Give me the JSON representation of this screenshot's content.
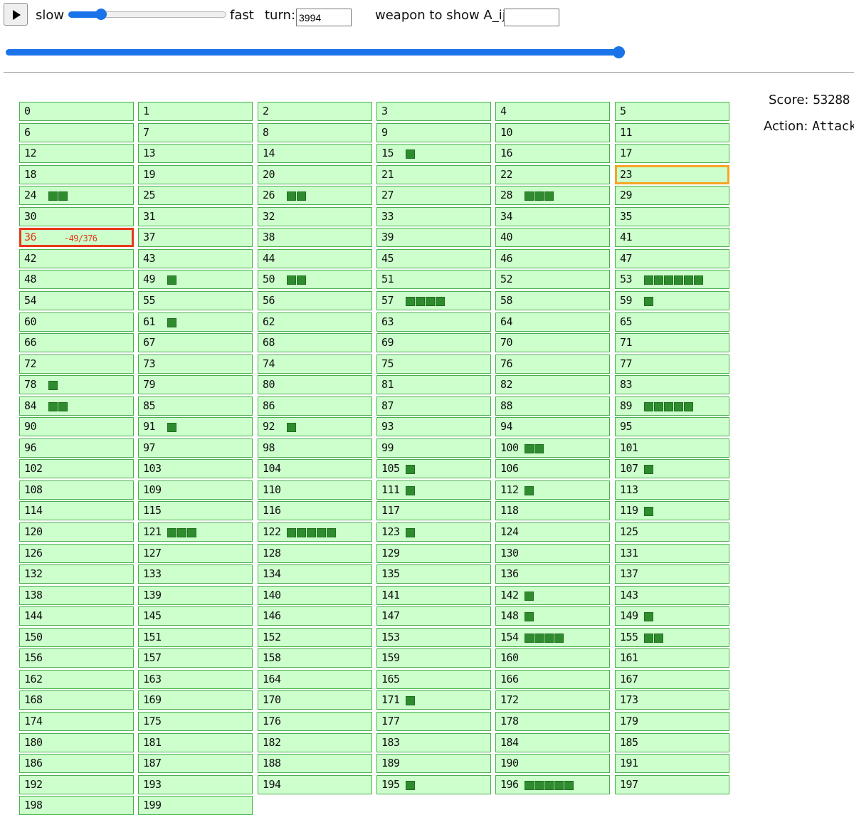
{
  "controls": {
    "play_icon": "play-triangle-icon",
    "slow_label": "slow",
    "fast_label": "fast",
    "speed_value": 0.2,
    "turn_label": "turn:",
    "turn_value": "3994",
    "weapon_label": "weapon to show A_ij:",
    "weapon_value": "",
    "turn_progress": 1.0
  },
  "side": {
    "score_label": "Score:",
    "score_value": "53288",
    "action_label": "Action:",
    "action_value": "Attack"
  },
  "colors": {
    "cell_bg": "#ccffcc",
    "cell_border": "#4caf50",
    "block": "#2e8b2e",
    "highlight_red": "#e53919",
    "highlight_orange": "#f5a623",
    "slider": "#1a73e8"
  },
  "cells": [
    {
      "id": "0",
      "blocks": 0
    },
    {
      "id": "1",
      "blocks": 0
    },
    {
      "id": "2",
      "blocks": 0
    },
    {
      "id": "3",
      "blocks": 0
    },
    {
      "id": "4",
      "blocks": 0
    },
    {
      "id": "5",
      "blocks": 0
    },
    {
      "id": "6",
      "blocks": 0
    },
    {
      "id": "7",
      "blocks": 0
    },
    {
      "id": "8",
      "blocks": 0
    },
    {
      "id": "9",
      "blocks": 0
    },
    {
      "id": "10",
      "blocks": 0
    },
    {
      "id": "11",
      "blocks": 0
    },
    {
      "id": "12",
      "blocks": 0
    },
    {
      "id": "13",
      "blocks": 0
    },
    {
      "id": "14",
      "blocks": 0
    },
    {
      "id": "15",
      "blocks": 1
    },
    {
      "id": "16",
      "blocks": 0
    },
    {
      "id": "17",
      "blocks": 0
    },
    {
      "id": "18",
      "blocks": 0
    },
    {
      "id": "19",
      "blocks": 0
    },
    {
      "id": "20",
      "blocks": 0
    },
    {
      "id": "21",
      "blocks": 0
    },
    {
      "id": "22",
      "blocks": 0
    },
    {
      "id": "23",
      "blocks": 0,
      "highlight": "orange"
    },
    {
      "id": "24",
      "blocks": 2
    },
    {
      "id": "25",
      "blocks": 0
    },
    {
      "id": "26",
      "blocks": 2
    },
    {
      "id": "27",
      "blocks": 0
    },
    {
      "id": "28",
      "blocks": 3
    },
    {
      "id": "29",
      "blocks": 0
    },
    {
      "id": "30",
      "blocks": 0
    },
    {
      "id": "31",
      "blocks": 0
    },
    {
      "id": "32",
      "blocks": 0
    },
    {
      "id": "33",
      "blocks": 0
    },
    {
      "id": "34",
      "blocks": 0
    },
    {
      "id": "35",
      "blocks": 0
    },
    {
      "id": "36",
      "blocks": 0,
      "highlight": "red",
      "text": "-49/376"
    },
    {
      "id": "37",
      "blocks": 0
    },
    {
      "id": "38",
      "blocks": 0
    },
    {
      "id": "39",
      "blocks": 0
    },
    {
      "id": "40",
      "blocks": 0
    },
    {
      "id": "41",
      "blocks": 0
    },
    {
      "id": "42",
      "blocks": 0
    },
    {
      "id": "43",
      "blocks": 0
    },
    {
      "id": "44",
      "blocks": 0
    },
    {
      "id": "45",
      "blocks": 0
    },
    {
      "id": "46",
      "blocks": 0
    },
    {
      "id": "47",
      "blocks": 0
    },
    {
      "id": "48",
      "blocks": 0
    },
    {
      "id": "49",
      "blocks": 1
    },
    {
      "id": "50",
      "blocks": 2
    },
    {
      "id": "51",
      "blocks": 0
    },
    {
      "id": "52",
      "blocks": 0
    },
    {
      "id": "53",
      "blocks": 6
    },
    {
      "id": "54",
      "blocks": 0
    },
    {
      "id": "55",
      "blocks": 0
    },
    {
      "id": "56",
      "blocks": 0
    },
    {
      "id": "57",
      "blocks": 4
    },
    {
      "id": "58",
      "blocks": 0
    },
    {
      "id": "59",
      "blocks": 1
    },
    {
      "id": "60",
      "blocks": 0
    },
    {
      "id": "61",
      "blocks": 1
    },
    {
      "id": "62",
      "blocks": 0
    },
    {
      "id": "63",
      "blocks": 0
    },
    {
      "id": "64",
      "blocks": 0
    },
    {
      "id": "65",
      "blocks": 0
    },
    {
      "id": "66",
      "blocks": 0
    },
    {
      "id": "67",
      "blocks": 0
    },
    {
      "id": "68",
      "blocks": 0
    },
    {
      "id": "69",
      "blocks": 0
    },
    {
      "id": "70",
      "blocks": 0
    },
    {
      "id": "71",
      "blocks": 0
    },
    {
      "id": "72",
      "blocks": 0
    },
    {
      "id": "73",
      "blocks": 0
    },
    {
      "id": "74",
      "blocks": 0
    },
    {
      "id": "75",
      "blocks": 0
    },
    {
      "id": "76",
      "blocks": 0
    },
    {
      "id": "77",
      "blocks": 0
    },
    {
      "id": "78",
      "blocks": 1
    },
    {
      "id": "79",
      "blocks": 0
    },
    {
      "id": "80",
      "blocks": 0
    },
    {
      "id": "81",
      "blocks": 0
    },
    {
      "id": "82",
      "blocks": 0
    },
    {
      "id": "83",
      "blocks": 0
    },
    {
      "id": "84",
      "blocks": 2
    },
    {
      "id": "85",
      "blocks": 0
    },
    {
      "id": "86",
      "blocks": 0
    },
    {
      "id": "87",
      "blocks": 0
    },
    {
      "id": "88",
      "blocks": 0
    },
    {
      "id": "89",
      "blocks": 5
    },
    {
      "id": "90",
      "blocks": 0
    },
    {
      "id": "91",
      "blocks": 1
    },
    {
      "id": "92",
      "blocks": 1
    },
    {
      "id": "93",
      "blocks": 0
    },
    {
      "id": "94",
      "blocks": 0
    },
    {
      "id": "95",
      "blocks": 0
    },
    {
      "id": "96",
      "blocks": 0
    },
    {
      "id": "97",
      "blocks": 0
    },
    {
      "id": "98",
      "blocks": 0
    },
    {
      "id": "99",
      "blocks": 0
    },
    {
      "id": "100",
      "blocks": 2
    },
    {
      "id": "101",
      "blocks": 0
    },
    {
      "id": "102",
      "blocks": 0
    },
    {
      "id": "103",
      "blocks": 0
    },
    {
      "id": "104",
      "blocks": 0
    },
    {
      "id": "105",
      "blocks": 1
    },
    {
      "id": "106",
      "blocks": 0
    },
    {
      "id": "107",
      "blocks": 1
    },
    {
      "id": "108",
      "blocks": 0
    },
    {
      "id": "109",
      "blocks": 0
    },
    {
      "id": "110",
      "blocks": 0
    },
    {
      "id": "111",
      "blocks": 1
    },
    {
      "id": "112",
      "blocks": 1
    },
    {
      "id": "113",
      "blocks": 0
    },
    {
      "id": "114",
      "blocks": 0
    },
    {
      "id": "115",
      "blocks": 0
    },
    {
      "id": "116",
      "blocks": 0
    },
    {
      "id": "117",
      "blocks": 0
    },
    {
      "id": "118",
      "blocks": 0
    },
    {
      "id": "119",
      "blocks": 1
    },
    {
      "id": "120",
      "blocks": 0
    },
    {
      "id": "121",
      "blocks": 3
    },
    {
      "id": "122",
      "blocks": 5
    },
    {
      "id": "123",
      "blocks": 1
    },
    {
      "id": "124",
      "blocks": 0
    },
    {
      "id": "125",
      "blocks": 0
    },
    {
      "id": "126",
      "blocks": 0
    },
    {
      "id": "127",
      "blocks": 0
    },
    {
      "id": "128",
      "blocks": 0
    },
    {
      "id": "129",
      "blocks": 0
    },
    {
      "id": "130",
      "blocks": 0
    },
    {
      "id": "131",
      "blocks": 0
    },
    {
      "id": "132",
      "blocks": 0
    },
    {
      "id": "133",
      "blocks": 0
    },
    {
      "id": "134",
      "blocks": 0
    },
    {
      "id": "135",
      "blocks": 0
    },
    {
      "id": "136",
      "blocks": 0
    },
    {
      "id": "137",
      "blocks": 0
    },
    {
      "id": "138",
      "blocks": 0
    },
    {
      "id": "139",
      "blocks": 0
    },
    {
      "id": "140",
      "blocks": 0
    },
    {
      "id": "141",
      "blocks": 0
    },
    {
      "id": "142",
      "blocks": 1
    },
    {
      "id": "143",
      "blocks": 0
    },
    {
      "id": "144",
      "blocks": 0
    },
    {
      "id": "145",
      "blocks": 0
    },
    {
      "id": "146",
      "blocks": 0
    },
    {
      "id": "147",
      "blocks": 0
    },
    {
      "id": "148",
      "blocks": 1
    },
    {
      "id": "149",
      "blocks": 1
    },
    {
      "id": "150",
      "blocks": 0
    },
    {
      "id": "151",
      "blocks": 0
    },
    {
      "id": "152",
      "blocks": 0
    },
    {
      "id": "153",
      "blocks": 0
    },
    {
      "id": "154",
      "blocks": 4
    },
    {
      "id": "155",
      "blocks": 2
    },
    {
      "id": "156",
      "blocks": 0
    },
    {
      "id": "157",
      "blocks": 0
    },
    {
      "id": "158",
      "blocks": 0
    },
    {
      "id": "159",
      "blocks": 0
    },
    {
      "id": "160",
      "blocks": 0
    },
    {
      "id": "161",
      "blocks": 0
    },
    {
      "id": "162",
      "blocks": 0
    },
    {
      "id": "163",
      "blocks": 0
    },
    {
      "id": "164",
      "blocks": 0
    },
    {
      "id": "165",
      "blocks": 0
    },
    {
      "id": "166",
      "blocks": 0
    },
    {
      "id": "167",
      "blocks": 0
    },
    {
      "id": "168",
      "blocks": 0
    },
    {
      "id": "169",
      "blocks": 0
    },
    {
      "id": "170",
      "blocks": 0
    },
    {
      "id": "171",
      "blocks": 1
    },
    {
      "id": "172",
      "blocks": 0
    },
    {
      "id": "173",
      "blocks": 0
    },
    {
      "id": "174",
      "blocks": 0
    },
    {
      "id": "175",
      "blocks": 0
    },
    {
      "id": "176",
      "blocks": 0
    },
    {
      "id": "177",
      "blocks": 0
    },
    {
      "id": "178",
      "blocks": 0
    },
    {
      "id": "179",
      "blocks": 0
    },
    {
      "id": "180",
      "blocks": 0
    },
    {
      "id": "181",
      "blocks": 0
    },
    {
      "id": "182",
      "blocks": 0
    },
    {
      "id": "183",
      "blocks": 0
    },
    {
      "id": "184",
      "blocks": 0
    },
    {
      "id": "185",
      "blocks": 0
    },
    {
      "id": "186",
      "blocks": 0
    },
    {
      "id": "187",
      "blocks": 0
    },
    {
      "id": "188",
      "blocks": 0
    },
    {
      "id": "189",
      "blocks": 0
    },
    {
      "id": "190",
      "blocks": 0
    },
    {
      "id": "191",
      "blocks": 0
    },
    {
      "id": "192",
      "blocks": 0
    },
    {
      "id": "193",
      "blocks": 0
    },
    {
      "id": "194",
      "blocks": 0
    },
    {
      "id": "195",
      "blocks": 1
    },
    {
      "id": "196",
      "blocks": 5
    },
    {
      "id": "197",
      "blocks": 0
    },
    {
      "id": "198",
      "blocks": 0
    },
    {
      "id": "199",
      "blocks": 0
    }
  ]
}
